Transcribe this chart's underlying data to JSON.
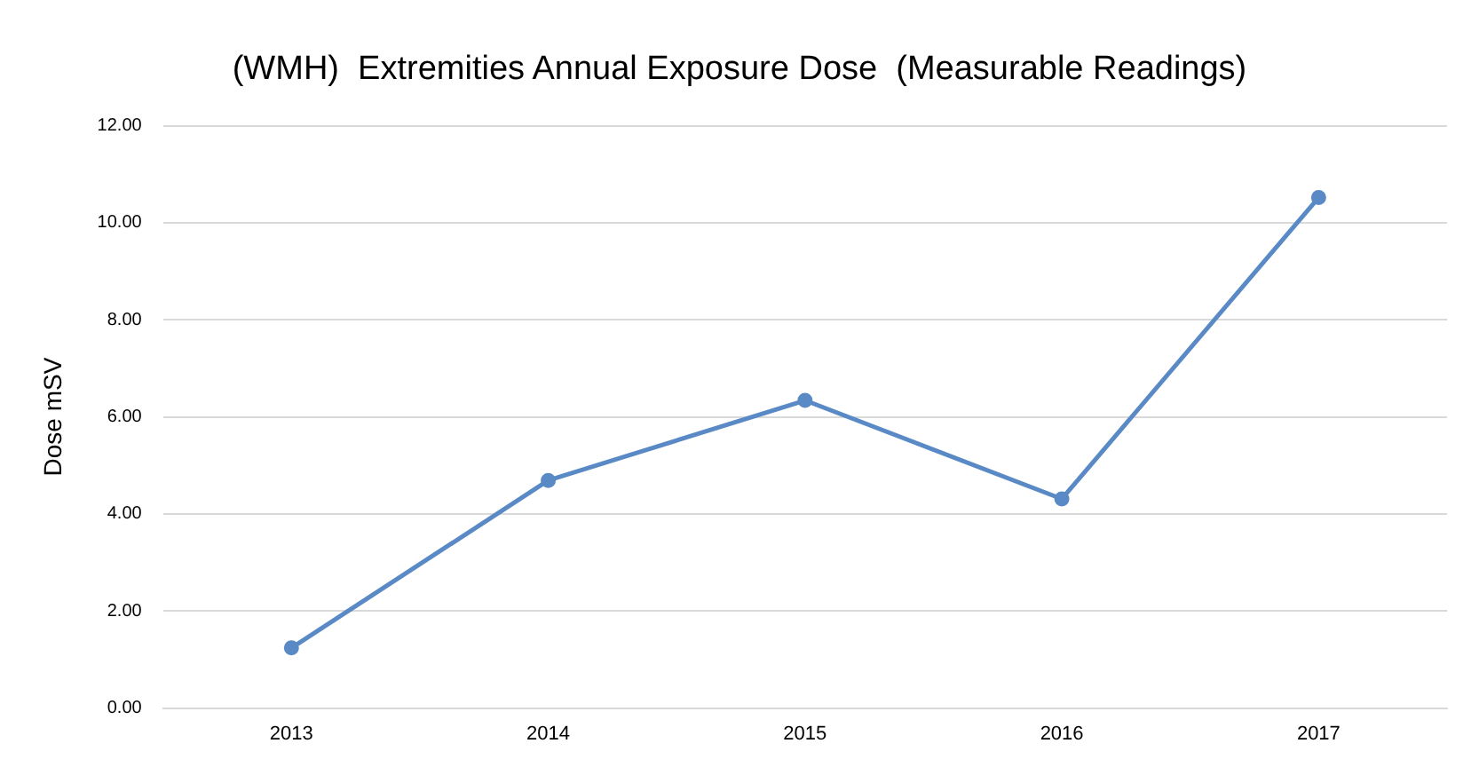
{
  "chart_data": {
    "type": "line",
    "title": "(WMH)  Extremities Annual Exposure Dose  (Measurable Readings)",
    "ylabel": "Dose mSV",
    "categories": [
      "2013",
      "2014",
      "2015",
      "2016",
      "2017"
    ],
    "series": [
      {
        "color": "#5a8ac6",
        "values": [
          1.24,
          4.69,
          6.34,
          4.31,
          10.52
        ]
      }
    ],
    "ylim": [
      0,
      12
    ],
    "yticks": [
      {
        "value": 0,
        "label": "0.00"
      },
      {
        "value": 2,
        "label": "2.00"
      },
      {
        "value": 4,
        "label": "4.00"
      },
      {
        "value": 6,
        "label": "6.00"
      },
      {
        "value": 8,
        "label": "8.00"
      },
      {
        "value": 10,
        "label": "10.00"
      },
      {
        "value": 12,
        "label": "12.00"
      }
    ],
    "grid": "y",
    "marker": "circle",
    "line_style": "solid",
    "legend": false
  }
}
